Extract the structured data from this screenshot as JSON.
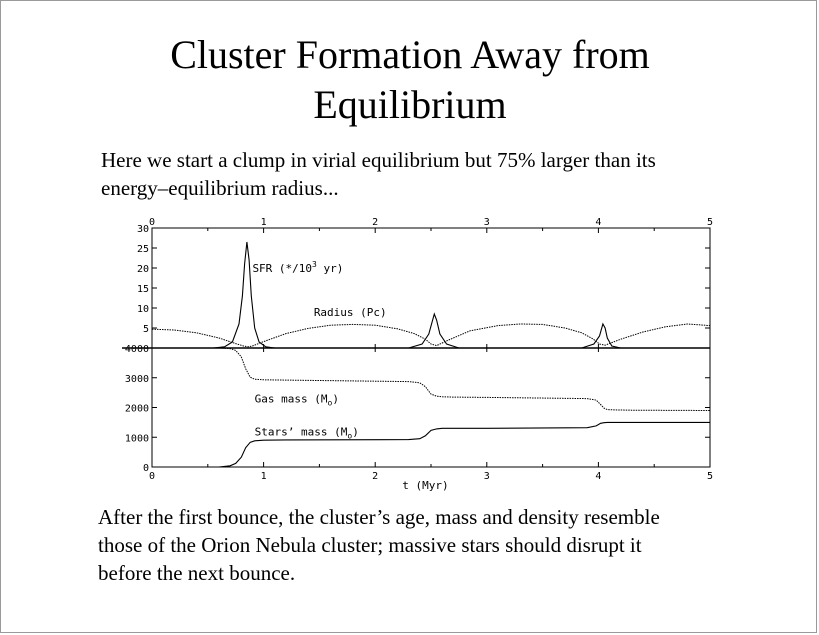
{
  "slide": {
    "title_line1": "Cluster Formation Away from",
    "title_line2": "Equilibrium",
    "intro_line1": "Here we start a clump in virial equilibrium but 75% larger than its",
    "intro_line2": "energy–equilibrium radius...",
    "outro_line1": "After the first bounce, the cluster’s age, mass and density resemble",
    "outro_line2": "those of the Orion Nebula cluster; massive stars should disrupt it",
    "outro_line3": "before the next bounce."
  },
  "chart_data": [
    {
      "type": "line",
      "panel": "top",
      "xlim": [
        0,
        5
      ],
      "ylim": [
        0,
        30
      ],
      "x_ticks": [
        "0",
        "1",
        "2",
        "3",
        "4",
        "5"
      ],
      "y_ticks": [
        "0",
        "5",
        "10",
        "15",
        "20",
        "25",
        "30"
      ],
      "y_ticks_shown": [
        "5",
        "10",
        "15",
        "20",
        "25",
        "30"
      ],
      "grid": false,
      "annotations": [
        {
          "text_main": "SFR (*/10",
          "text_sup": "3",
          "text_end": " yr)",
          "series": "sfr"
        },
        {
          "text": "Radius (Pc)",
          "series": "radius"
        }
      ],
      "series": [
        {
          "name": "SFR",
          "x": [
            0.55,
            0.65,
            0.72,
            0.78,
            0.81,
            0.83,
            0.85,
            0.87,
            0.89,
            0.92,
            0.96,
            1.02,
            1.1,
            2.3,
            2.42,
            2.48,
            2.51,
            2.53,
            2.55,
            2.58,
            2.64,
            2.75,
            3.85,
            3.96,
            4.01,
            4.04,
            4.06,
            4.08,
            4.12,
            4.2
          ],
          "values": [
            0,
            0.3,
            1.5,
            6,
            13,
            21,
            26.5,
            22,
            13,
            5,
            1.5,
            0.3,
            0,
            0,
            1,
            3.5,
            6.5,
            8.5,
            7,
            3.5,
            1,
            0,
            0,
            1,
            3,
            6,
            5,
            2.5,
            0.5,
            0
          ]
        },
        {
          "name": "Radius",
          "x": [
            0,
            0.2,
            0.4,
            0.6,
            0.75,
            0.82,
            0.86,
            0.9,
            1.0,
            1.2,
            1.4,
            1.6,
            1.8,
            2.0,
            2.2,
            2.35,
            2.45,
            2.5,
            2.55,
            2.65,
            2.85,
            3.1,
            3.3,
            3.5,
            3.7,
            3.85,
            3.95,
            4.01,
            4.06,
            4.2,
            4.4,
            4.6,
            4.8,
            5.0
          ],
          "values": [
            4.7,
            4.5,
            3.8,
            2.5,
            1.1,
            0.5,
            0.3,
            0.5,
            1.6,
            3.6,
            4.9,
            5.7,
            5.9,
            5.7,
            4.8,
            3.6,
            2.2,
            1.0,
            0.6,
            1.9,
            4.3,
            5.6,
            6.0,
            5.9,
            5.0,
            3.8,
            2.3,
            1.0,
            0.7,
            2.2,
            4.0,
            5.3,
            6.0,
            5.6
          ]
        }
      ]
    },
    {
      "type": "line",
      "panel": "bottom",
      "xlabel": "t (Myr)",
      "xlim": [
        0,
        5
      ],
      "ylim": [
        0,
        4000
      ],
      "x_ticks": [
        "0",
        "1",
        "2",
        "3",
        "4",
        "5"
      ],
      "y_ticks": [
        "0",
        "1000",
        "2000",
        "3000",
        "4000"
      ],
      "grid": false,
      "annotations": [
        {
          "text_main": "Gas mass (M",
          "text_sub": "o",
          "text_end": ")",
          "series": "gas"
        },
        {
          "text_main": "Stars’ mass (M",
          "text_sub": "o",
          "text_end": ")",
          "series": "stars"
        }
      ],
      "series": [
        {
          "name": "Gas mass",
          "x": [
            0,
            0.6,
            0.7,
            0.75,
            0.8,
            0.84,
            0.88,
            0.92,
            1.0,
            1.2,
            2.3,
            2.4,
            2.45,
            2.5,
            2.55,
            2.6,
            2.7,
            3.0,
            3.9,
            3.98,
            4.02,
            4.05,
            4.08,
            4.15,
            4.3,
            5.0
          ],
          "values": [
            4000,
            4000,
            3980,
            3920,
            3700,
            3300,
            3020,
            2950,
            2930,
            2920,
            2870,
            2830,
            2700,
            2450,
            2380,
            2360,
            2350,
            2340,
            2300,
            2250,
            2100,
            1980,
            1930,
            1920,
            1910,
            1900
          ]
        },
        {
          "name": "Stars' mass",
          "x": [
            0,
            0.6,
            0.7,
            0.75,
            0.8,
            0.84,
            0.88,
            0.92,
            1.0,
            1.2,
            2.3,
            2.4,
            2.45,
            2.5,
            2.55,
            2.6,
            2.7,
            3.0,
            3.9,
            3.98,
            4.02,
            4.05,
            4.08,
            4.15,
            4.3,
            5.0
          ],
          "values": [
            0,
            0,
            40,
            120,
            330,
            650,
            830,
            880,
            900,
            910,
            920,
            950,
            1050,
            1230,
            1280,
            1300,
            1300,
            1300,
            1320,
            1380,
            1470,
            1490,
            1500,
            1500,
            1500,
            1500
          ]
        }
      ]
    }
  ]
}
